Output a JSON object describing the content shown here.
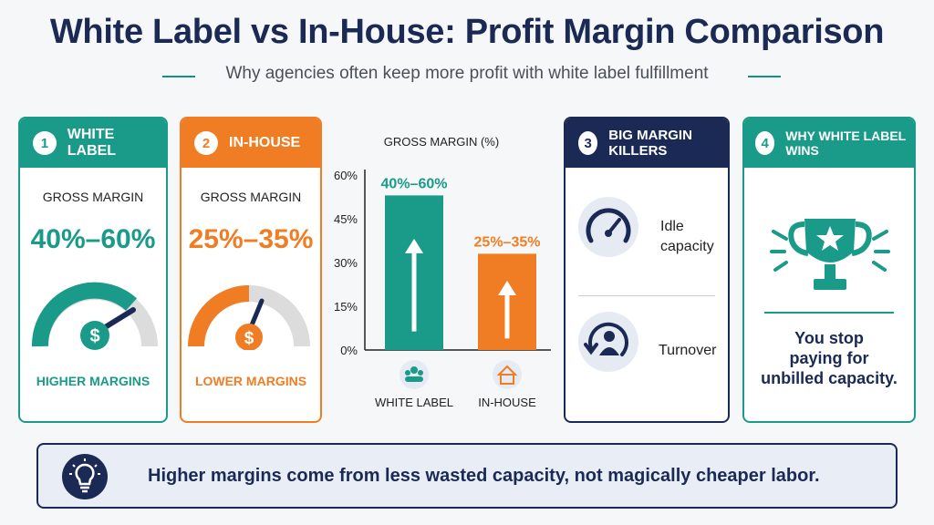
{
  "title": "White Label vs In-House: Profit Margin Comparison",
  "subtitle": "Why agencies often keep more profit with white label fulfillment",
  "colors": {
    "teal": "#1a9a88",
    "orange": "#f07d23",
    "navy": "#1b2a55"
  },
  "cards": {
    "white_label": {
      "number": "1",
      "title": "WHITE LABEL",
      "label": "GROSS MARGIN",
      "value": "40%–60%",
      "caption": "HIGHER MARGINS",
      "icon": "dollar-icon"
    },
    "in_house": {
      "number": "2",
      "title": "IN-HOUSE",
      "label": "GROSS MARGIN",
      "value": "25%–35%",
      "caption": "LOWER MARGINS",
      "icon": "dollar-icon"
    },
    "killers": {
      "number": "3",
      "title": "BIG MARGIN KILLERS",
      "items": [
        {
          "label_line1": "Idle",
          "label_line2": "capacity",
          "icon": "speedometer-icon"
        },
        {
          "label_line1": "Turnover",
          "label_line2": "",
          "icon": "person-cycle-icon"
        }
      ]
    },
    "wins": {
      "number": "4",
      "title": "WHY WHITE LABEL WINS",
      "line1": "You stop",
      "line2": "paying for",
      "line3": "unbilled capacity.",
      "icon": "trophy-icon"
    }
  },
  "chart_data": {
    "type": "bar",
    "title": "GROSS MARGIN (%)",
    "categories": [
      "WHITE LABEL",
      "IN-HOUSE"
    ],
    "values": [
      53,
      33
    ],
    "data_labels": [
      "40%–60%",
      "25%–35%"
    ],
    "yticks": [
      "0%",
      "15%",
      "30%",
      "45%",
      "60%"
    ],
    "ylim": [
      0,
      60
    ],
    "colors": [
      "#1a9a88",
      "#f07d23"
    ],
    "category_icons": [
      "team-icon",
      "house-icon"
    ]
  },
  "banner": {
    "text": "Higher margins come from less wasted capacity, not magically cheaper labor.",
    "icon": "lightbulb-icon"
  }
}
